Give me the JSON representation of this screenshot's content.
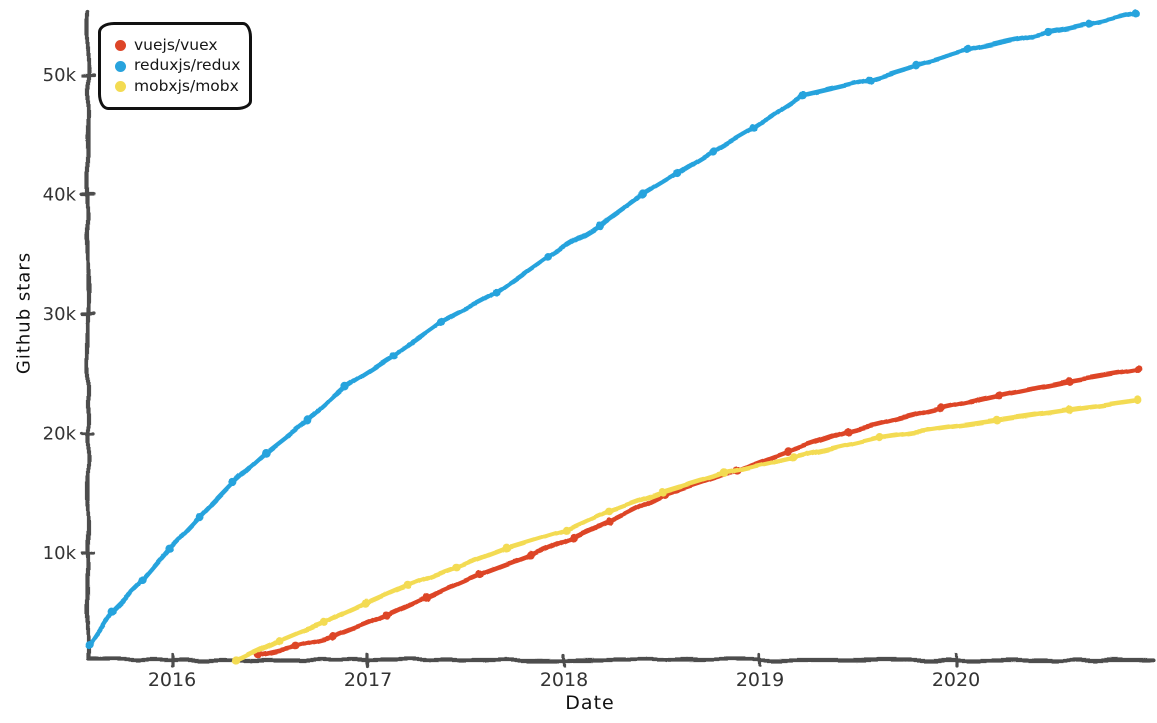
{
  "chart_data": {
    "type": "line",
    "title": "",
    "xlabel": "Date",
    "ylabel": "Github stars",
    "grid": false,
    "legend_position": "top-left",
    "axis_color": "#4d4d4d",
    "tick_text_color": "#333333",
    "x_units": "decimal year",
    "y_units": "GitHub stars (thousands)",
    "x_range": [
      2015.57,
      2021.0
    ],
    "y_range_k": [
      1.1,
      55.6
    ],
    "x_ticks": [
      {
        "v": 2016,
        "label": "2016"
      },
      {
        "v": 2017,
        "label": "2017"
      },
      {
        "v": 2018,
        "label": "2018"
      },
      {
        "v": 2019,
        "label": "2019"
      },
      {
        "v": 2020,
        "label": "2020"
      }
    ],
    "y_ticks": [
      {
        "v": 10,
        "label": "10k"
      },
      {
        "v": 20,
        "label": "20k"
      },
      {
        "v": 30,
        "label": "30k"
      },
      {
        "v": 40,
        "label": "40k"
      },
      {
        "v": 50,
        "label": "50k"
      }
    ],
    "series": [
      {
        "name": "vuejs/vuex",
        "color": "#dd4528",
        "points": [
          [
            2016.44,
            1.5
          ],
          [
            2016.63,
            2.2
          ],
          [
            2016.82,
            3.0
          ],
          [
            2017.1,
            4.8
          ],
          [
            2017.3,
            6.3
          ],
          [
            2017.57,
            8.2
          ],
          [
            2017.83,
            9.8
          ],
          [
            2018.05,
            11.3
          ],
          [
            2018.23,
            12.6
          ],
          [
            2018.51,
            14.9
          ],
          [
            2018.88,
            16.9
          ],
          [
            2019.14,
            18.5
          ],
          [
            2019.45,
            20.2
          ],
          [
            2019.92,
            22.1
          ],
          [
            2020.22,
            23.2
          ],
          [
            2020.58,
            24.4
          ],
          [
            2020.93,
            25.4
          ]
        ]
      },
      {
        "name": "reduxjs/redux",
        "color": "#28a3dd",
        "points": [
          [
            2015.58,
            2.3
          ],
          [
            2015.69,
            5.1
          ],
          [
            2015.85,
            7.7
          ],
          [
            2015.99,
            10.4
          ],
          [
            2016.14,
            13.0
          ],
          [
            2016.31,
            15.9
          ],
          [
            2016.48,
            18.4
          ],
          [
            2016.69,
            21.1
          ],
          [
            2016.88,
            23.9
          ],
          [
            2017.13,
            26.5
          ],
          [
            2017.37,
            29.3
          ],
          [
            2017.66,
            31.8
          ],
          [
            2017.92,
            34.8
          ],
          [
            2018.18,
            37.4
          ],
          [
            2018.4,
            40.0
          ],
          [
            2018.58,
            41.8
          ],
          [
            2018.76,
            43.6
          ],
          [
            2018.97,
            45.6
          ],
          [
            2019.22,
            48.3
          ],
          [
            2019.56,
            49.6
          ],
          [
            2019.8,
            50.8
          ],
          [
            2020.06,
            52.1
          ],
          [
            2020.47,
            53.6
          ],
          [
            2020.68,
            54.3
          ],
          [
            2020.92,
            55.2
          ]
        ]
      },
      {
        "name": "mobxjs/mobx",
        "color": "#f3db52",
        "points": [
          [
            2016.33,
            1.0
          ],
          [
            2016.55,
            2.7
          ],
          [
            2016.77,
            4.2
          ],
          [
            2016.99,
            5.8
          ],
          [
            2017.2,
            7.3
          ],
          [
            2017.45,
            8.8
          ],
          [
            2017.71,
            10.4
          ],
          [
            2018.01,
            11.9
          ],
          [
            2018.23,
            13.5
          ],
          [
            2018.5,
            15.1
          ],
          [
            2018.82,
            16.7
          ],
          [
            2019.17,
            18.0
          ],
          [
            2019.61,
            19.7
          ],
          [
            2020.21,
            21.1
          ],
          [
            2020.58,
            22.0
          ],
          [
            2020.93,
            22.8
          ]
        ]
      }
    ]
  }
}
